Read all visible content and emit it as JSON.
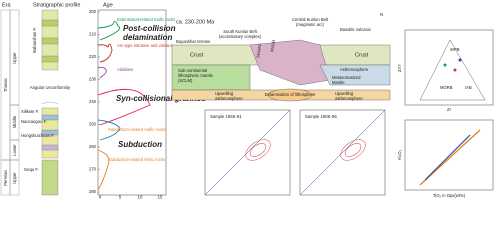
{
  "left": {
    "era_header": "Era",
    "profile_header": "Stratigraphic profile",
    "age_header": "Age",
    "periods": [
      "Triassic",
      "Permian"
    ],
    "epochs": [
      "Upper",
      "Middle",
      "Lower",
      "Upper"
    ],
    "formations": [
      "Babaoshan F.",
      "Angular Unconformity",
      "Xilikete F.",
      "Naocaogou F.",
      "Hongshuichuan F.",
      "Gequ F."
    ],
    "age_ticks": [
      "200",
      "210",
      "220",
      "230",
      "240",
      "250",
      "260",
      "270",
      "280"
    ],
    "count_ticks": [
      "0",
      "5",
      "10",
      "15"
    ],
    "annotations": [
      "Extensional-related mafic rocks",
      "Post-collision",
      "delamination",
      "Arc-type intrusive and volcanic",
      "Adakites",
      "Syn-collisional granites",
      "Subduction-related mafic rocks",
      "Subduction",
      "Subduction-related felsic rocks"
    ]
  },
  "center": {
    "title": "ca. 230-200 Ma",
    "labels": [
      "South Kunlun Belt",
      "(accretionary complex)",
      "Central Kunlun Belt",
      "(magmatic arc)",
      "Bayankhar terrane",
      "Crust",
      "Crust",
      "Sub-continental",
      "lithospheric mantle",
      "(SCLM)",
      "Asthenosphere",
      "Metasomatized",
      "Mantle",
      "Upwelling",
      "asthenosphere",
      "Delamination of lithosphere",
      "Upwelling",
      "asthenosphere",
      "N",
      "Basaltic volcanic",
      "SKMAF",
      "ANSM"
    ],
    "samples": [
      "Sample 19SK-81",
      "Sample 19SK-86"
    ]
  },
  "right": {
    "top_labels": [
      "WPB",
      "MORB",
      "IAB",
      "Zr/Y",
      "Zr"
    ],
    "bottom_axis": "TiO₂ in Opx(wt%)",
    "bottom_y": "Al₂O₃"
  }
}
